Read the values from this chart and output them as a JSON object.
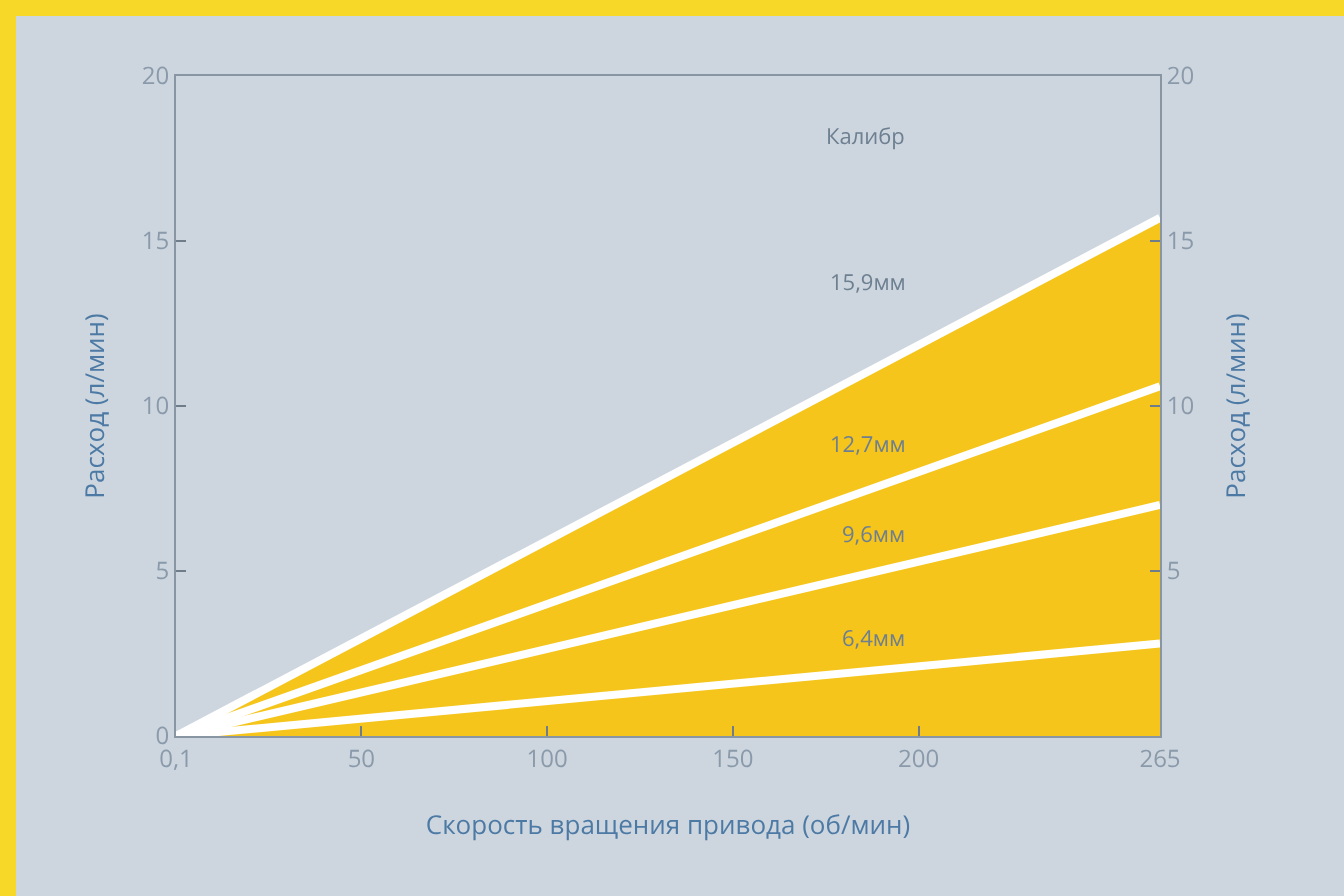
{
  "chart_data": {
    "type": "line",
    "xlabel": "Скорость вращения привода (об/мин)",
    "ylabel": "Расход (л/мин)",
    "y2label": "Расход (л/мин)",
    "legend_title": "Калибр",
    "x": [
      0.1,
      265
    ],
    "series": [
      {
        "name": "15,9мм",
        "type": "area",
        "color": "#f5c51c",
        "values": [
          0,
          15.7
        ]
      },
      {
        "name": "12,7мм",
        "color": "#ffffff",
        "values": [
          0,
          10.6
        ]
      },
      {
        "name": "9,6мм",
        "color": "#ffffff",
        "values": [
          0,
          7.0
        ]
      },
      {
        "name": "6,4мм",
        "color": "#ffffff",
        "values": [
          0,
          2.8
        ]
      }
    ],
    "xlim": [
      0.1,
      265
    ],
    "xticks": [
      {
        "value": 0.1,
        "label": "0,1"
      },
      50,
      100,
      150,
      200,
      265
    ],
    "ylim": [
      0,
      20
    ],
    "yticks": [
      0,
      5,
      10,
      15,
      20
    ],
    "y2lim": [
      0,
      20
    ],
    "y2ticks": [
      5,
      10,
      15,
      20
    ],
    "grid": false,
    "legend": false,
    "marker": "none",
    "line_style": "solid"
  }
}
